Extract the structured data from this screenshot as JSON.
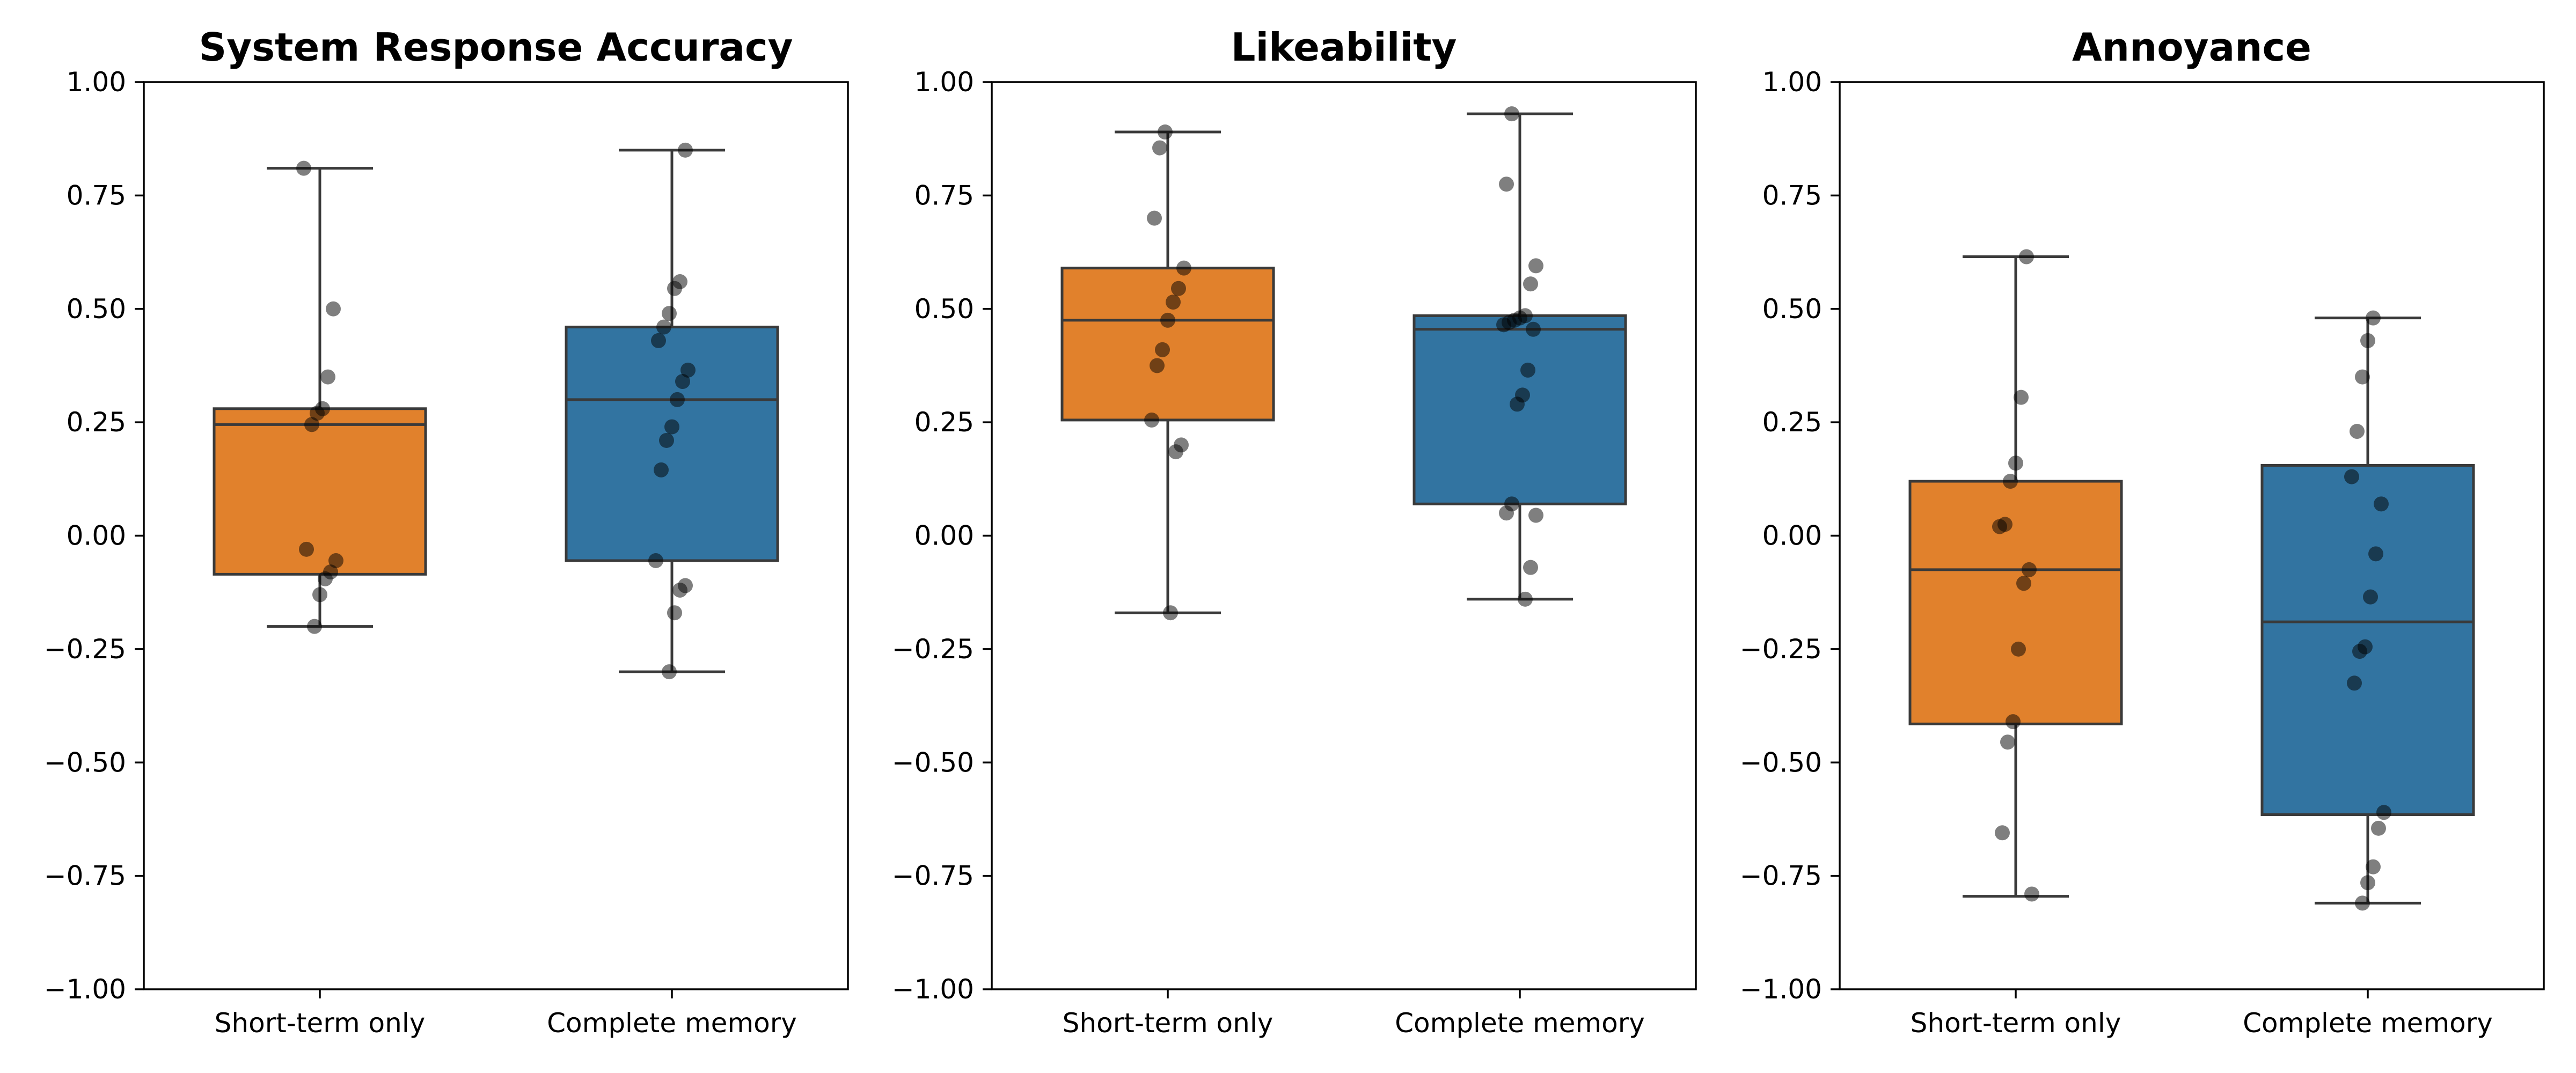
{
  "chart_data": [
    {
      "type": "box",
      "title": "System Response Accuracy",
      "xlabel": "",
      "ylabel": "",
      "ylim": [
        -1.0,
        1.0
      ],
      "yticks": [
        "−1.00",
        "−0.75",
        "−0.50",
        "−0.25",
        "0.00",
        "0.25",
        "0.50",
        "0.75",
        "1.00"
      ],
      "categories": [
        "Short-term only",
        "Complete memory"
      ],
      "colors": [
        "#e1812c",
        "#3274a1"
      ],
      "boxes": [
        {
          "whisker_low": -0.2,
          "q1": -0.085,
          "median": 0.245,
          "q3": 0.28,
          "whisker_high": 0.81
        },
        {
          "whisker_low": -0.3,
          "q1": -0.055,
          "median": 0.3,
          "q3": 0.46,
          "whisker_high": 0.85
        }
      ],
      "points": [
        [
          0.81,
          0.5,
          0.35,
          0.28,
          0.27,
          0.245,
          -0.03,
          -0.055,
          -0.08,
          -0.095,
          -0.13,
          -0.2
        ],
        [
          0.85,
          0.56,
          0.545,
          0.49,
          0.46,
          0.43,
          0.365,
          0.34,
          0.3,
          0.24,
          0.21,
          0.145,
          -0.055,
          -0.11,
          -0.12,
          -0.17,
          -0.3
        ]
      ]
    },
    {
      "type": "box",
      "title": "Likeability",
      "xlabel": "",
      "ylabel": "",
      "ylim": [
        -1.0,
        1.0
      ],
      "yticks": [
        "−1.00",
        "−0.75",
        "−0.50",
        "−0.25",
        "0.00",
        "0.25",
        "0.50",
        "0.75",
        "1.00"
      ],
      "categories": [
        "Short-term only",
        "Complete memory"
      ],
      "colors": [
        "#e1812c",
        "#3274a1"
      ],
      "boxes": [
        {
          "whisker_low": -0.17,
          "q1": 0.255,
          "median": 0.475,
          "q3": 0.59,
          "whisker_high": 0.89
        },
        {
          "whisker_low": -0.14,
          "q1": 0.07,
          "median": 0.455,
          "q3": 0.485,
          "whisker_high": 0.93
        }
      ],
      "points": [
        [
          0.89,
          0.855,
          0.7,
          0.59,
          0.545,
          0.515,
          0.475,
          0.41,
          0.375,
          0.255,
          0.2,
          0.185,
          -0.17
        ],
        [
          0.93,
          0.775,
          0.595,
          0.555,
          0.485,
          0.48,
          0.475,
          0.47,
          0.465,
          0.455,
          0.365,
          0.31,
          0.29,
          0.07,
          0.05,
          0.045,
          -0.07,
          -0.14
        ]
      ]
    },
    {
      "type": "box",
      "title": "Annoyance",
      "xlabel": "",
      "ylabel": "",
      "ylim": [
        -1.0,
        1.0
      ],
      "yticks": [
        "−1.00",
        "−0.75",
        "−0.50",
        "−0.25",
        "0.00",
        "0.25",
        "0.50",
        "0.75",
        "1.00"
      ],
      "categories": [
        "Short-term only",
        "Complete memory"
      ],
      "colors": [
        "#e1812c",
        "#3274a1"
      ],
      "boxes": [
        {
          "whisker_low": -0.795,
          "q1": -0.415,
          "median": -0.075,
          "q3": 0.12,
          "whisker_high": 0.615
        },
        {
          "whisker_low": -0.81,
          "q1": -0.615,
          "median": -0.19,
          "q3": 0.155,
          "whisker_high": 0.48
        }
      ],
      "points": [
        [
          0.615,
          0.305,
          0.16,
          0.12,
          0.025,
          0.02,
          -0.075,
          -0.105,
          -0.25,
          -0.41,
          -0.455,
          -0.655,
          -0.79
        ],
        [
          0.48,
          0.43,
          0.35,
          0.23,
          0.13,
          0.07,
          -0.04,
          -0.135,
          -0.245,
          -0.255,
          -0.325,
          -0.61,
          -0.645,
          -0.73,
          -0.765,
          -0.81
        ]
      ]
    }
  ]
}
